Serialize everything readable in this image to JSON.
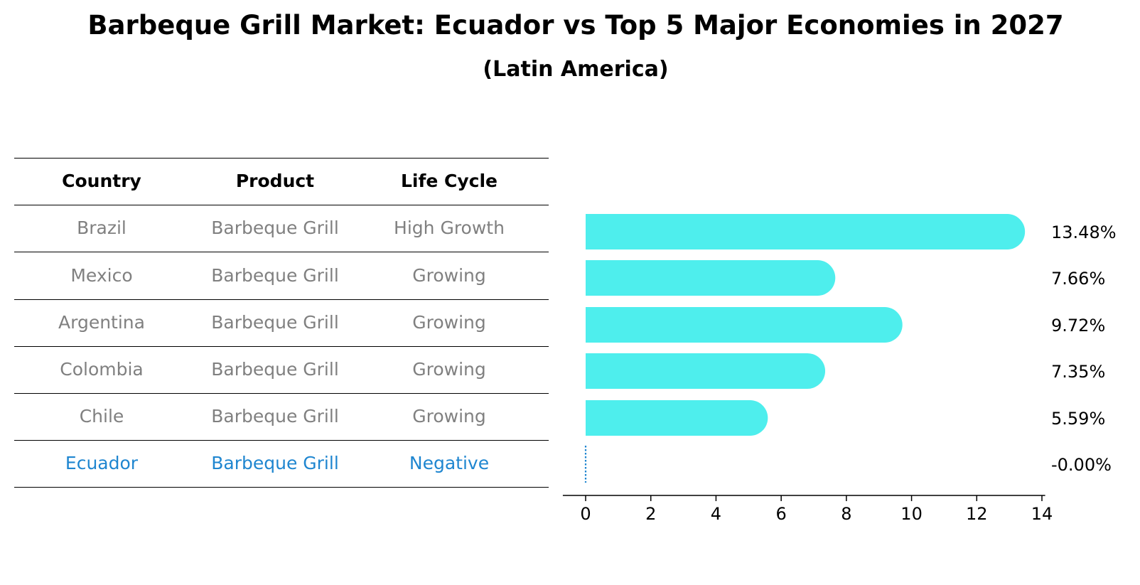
{
  "title": "Barbeque Grill Market: Ecuador vs Top 5 Major Economies in 2027",
  "subtitle": "(Latin America)",
  "colors": {
    "bar": "#4eeeed",
    "highlight": "#1f86d0",
    "muted": "#808080"
  },
  "table": {
    "headers": [
      "Country",
      "Product",
      "Life Cycle"
    ],
    "rows": [
      [
        "Brazil",
        "Barbeque Grill",
        "High Growth"
      ],
      [
        "Mexico",
        "Barbeque Grill",
        "Growing"
      ],
      [
        "Argentina",
        "Barbeque Grill",
        "Growing"
      ],
      [
        "Colombia",
        "Barbeque Grill",
        "Growing"
      ],
      [
        "Chile",
        "Barbeque Grill",
        "Growing"
      ],
      [
        "Ecuador",
        "Barbeque Grill",
        "Negative"
      ]
    ],
    "highlight_row": 5
  },
  "chart_data": {
    "type": "bar",
    "orientation": "horizontal",
    "categories": [
      "Brazil",
      "Mexico",
      "Argentina",
      "Colombia",
      "Chile",
      "Ecuador"
    ],
    "values": [
      13.48,
      7.66,
      9.72,
      7.35,
      5.59,
      -0.0
    ],
    "labels": [
      "13.48%",
      "7.66%",
      "9.72%",
      "7.35%",
      "5.59%",
      "-0.00%"
    ],
    "xlim": [
      -0.7,
      14.1
    ],
    "xticks": [
      0,
      2,
      4,
      6,
      8,
      10,
      12,
      14
    ],
    "xlabel": "",
    "ylabel": ""
  }
}
